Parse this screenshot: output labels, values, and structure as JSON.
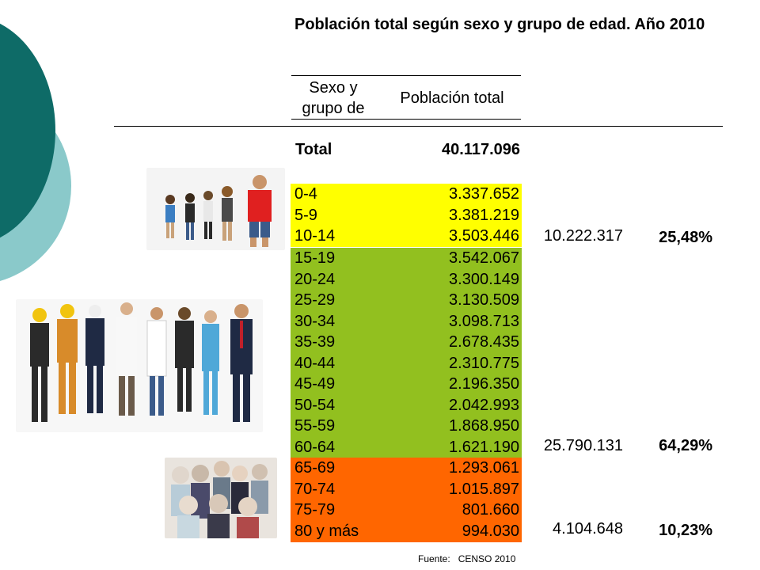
{
  "title": "Población total según sexo y grupo de edad. Año 2010",
  "headers": {
    "col1_line1": "Sexo y",
    "col1_line2": "grupo de",
    "col2": "Población total"
  },
  "total": {
    "label": "Total",
    "value": "40.117.096"
  },
  "groups": [
    {
      "color": "#ffff00",
      "rows": [
        {
          "age": "0-4",
          "value": "3.337.652"
        },
        {
          "age": "5-9",
          "value": "3.381.219"
        },
        {
          "age": "10-14",
          "value": "3.503.446"
        }
      ],
      "subtotal": "10.222.317",
      "percent": "25,48%"
    },
    {
      "color": "#92c01f",
      "rows": [
        {
          "age": "15-19",
          "value": "3.542.067"
        },
        {
          "age": "20-24",
          "value": "3.300.149"
        },
        {
          "age": "25-29",
          "value": "3.130.509"
        },
        {
          "age": "30-34",
          "value": "3.098.713"
        },
        {
          "age": "35-39",
          "value": "2.678.435"
        },
        {
          "age": "40-44",
          "value": "2.310.775"
        },
        {
          "age": "45-49",
          "value": "2.196.350"
        },
        {
          "age": "50-54",
          "value": "2.042.993"
        },
        {
          "age": "55-59",
          "value": "1.868.950"
        },
        {
          "age": "60-64",
          "value": "1.621.190"
        }
      ],
      "subtotal": "25.790.131",
      "percent": "64,29%"
    },
    {
      "color": "#ff6600",
      "rows": [
        {
          "age": "65-69",
          "value": "1.293.061"
        },
        {
          "age": "70-74",
          "value": "1.015.897"
        },
        {
          "age": "75-79",
          "value": "801.660"
        },
        {
          "age": "80 y más",
          "value": "994.030"
        }
      ],
      "subtotal": "4.104.648",
      "percent": "10,23%"
    }
  ],
  "source": {
    "label": "Fuente:",
    "value": "CENSO 2010"
  },
  "images": {
    "children": "children-photo",
    "workers": "workers-photo",
    "elders": "elders-photo"
  }
}
